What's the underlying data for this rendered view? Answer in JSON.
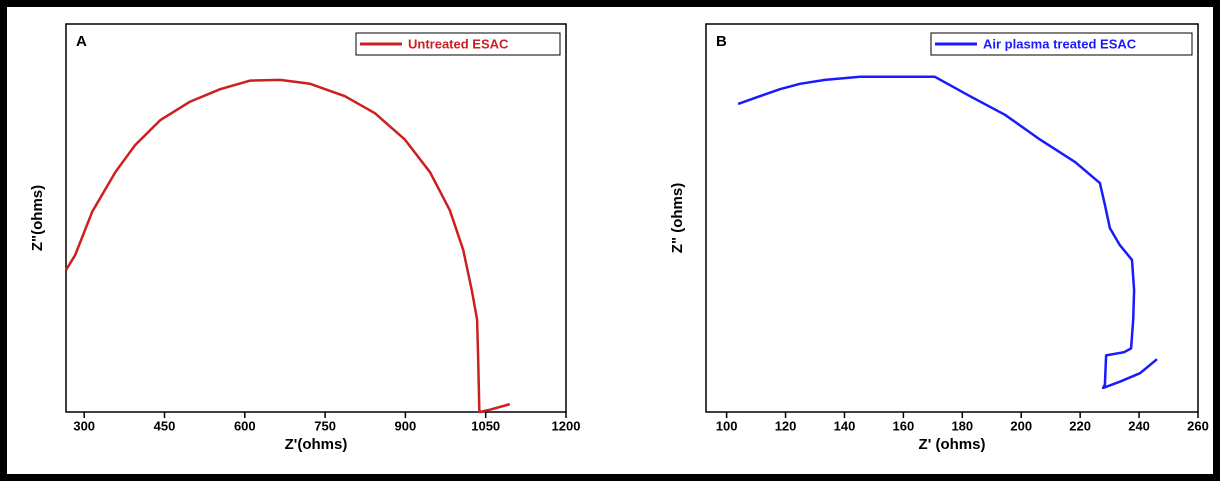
{
  "chart_data": [
    {
      "type": "line",
      "label": "A",
      "xlabel": "Z'(ohms)",
      "ylabel": "Z\"(ohms)",
      "legend": "upper right",
      "xlim": [
        266,
        1200
      ],
      "ylim": [
        0,
        500
      ],
      "xticks": [
        300,
        450,
        600,
        750,
        900,
        1050,
        1200
      ],
      "x": [
        266,
        283,
        315,
        358,
        395,
        442,
        498,
        554,
        610,
        666,
        722,
        787,
        843,
        899,
        946,
        983,
        1008,
        1024,
        1034,
        1036,
        1038,
        1039,
        1058,
        1095
      ],
      "series": [
        {
          "name": "Untreated ESAC",
          "color": "#cc1f1f",
          "values": [
            183,
            202,
            258,
            309,
            344,
            376,
            400,
            416,
            427,
            428,
            423,
            407,
            385,
            351,
            309,
            260,
            209,
            157,
            119,
            67,
            3,
            0,
            3,
            10
          ]
        }
      ]
    },
    {
      "type": "line",
      "label": "B",
      "xlabel": "Z' (ohms)",
      "ylabel": "Z\" (ohms)",
      "legend": "upper right",
      "xlim": [
        93,
        260
      ],
      "ylim": [
        0,
        500
      ],
      "xticks": [
        100,
        120,
        140,
        160,
        180,
        200,
        220,
        240,
        260
      ],
      "x": [
        103.9,
        111.3,
        118.1,
        124.9,
        133.4,
        145.3,
        158.9,
        170.7,
        182.6,
        194.5,
        206.4,
        218.3,
        226.7,
        228.4,
        230.1,
        233.5,
        237.6,
        238.3,
        238.0,
        237.3,
        234.9,
        228.8,
        228.4,
        227.8,
        233.5,
        240.3,
        246.1
      ],
      "series": [
        {
          "name": "Air plasma treated ESAC",
          "color": "#1a1aff",
          "values": [
            397,
            407,
            416,
            423,
            428,
            432,
            432,
            432,
            407,
            383,
            351,
            322,
            295,
            267,
            237,
            215,
            196,
            157,
            119,
            82,
            77,
            73,
            35,
            31,
            39,
            50,
            68
          ]
        }
      ]
    }
  ]
}
